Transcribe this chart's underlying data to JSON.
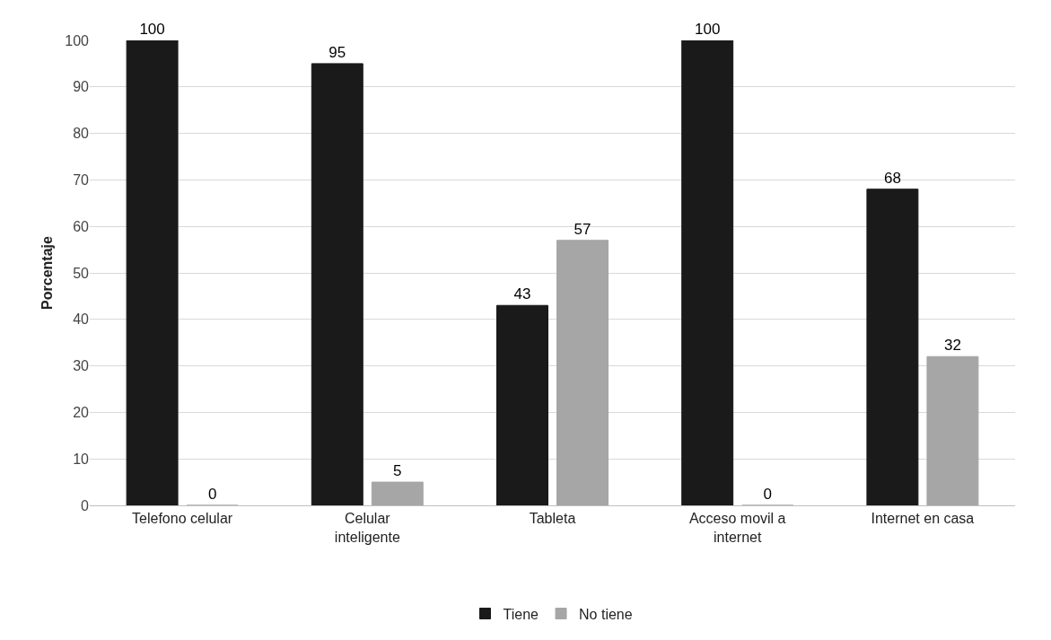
{
  "chart_data": {
    "type": "bar",
    "ylabel": "Porcentaje",
    "categories": [
      "Telefono celular",
      "Celular inteligente",
      "Tableta",
      "Acceso movil a internet",
      "Internet en casa"
    ],
    "series": [
      {
        "name": "Tiene",
        "color": "#1a1a1a",
        "values": [
          100,
          95,
          43,
          100,
          68
        ]
      },
      {
        "name": "No tiene",
        "color": "#a6a6a6",
        "values": [
          0,
          5,
          57,
          0,
          32
        ]
      }
    ],
    "ylim": [
      0,
      100
    ],
    "yticks": [
      0,
      10,
      20,
      30,
      40,
      50,
      60,
      70,
      80,
      90,
      100
    ],
    "grid": "y",
    "legend": "bottom",
    "data_labels": true
  }
}
